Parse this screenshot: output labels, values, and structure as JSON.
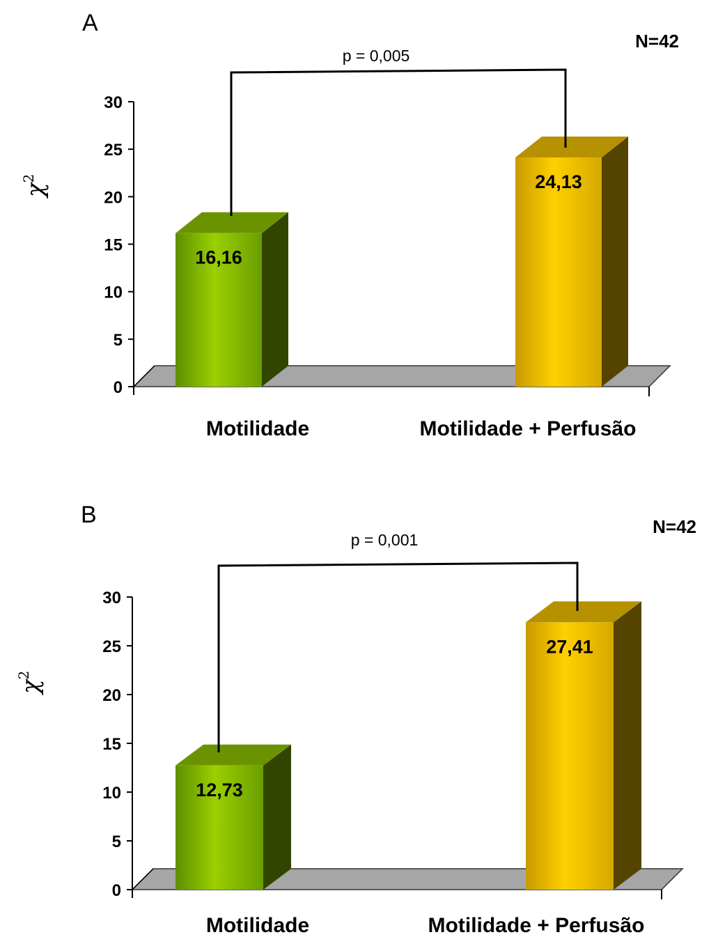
{
  "chart_data": [
    {
      "type": "bar",
      "panel": "A",
      "annotation_n": "N=42",
      "categories": [
        "Motilidade",
        "Motilidade + Perfusão"
      ],
      "values": [
        16.16,
        24.13
      ],
      "value_labels": [
        "16,16",
        "24,13"
      ],
      "colors": [
        "#8fc400",
        "#f2c200"
      ],
      "ylabel": "χ",
      "ylabel_sup": "2",
      "ylim": [
        0,
        30
      ],
      "yticks": [
        0,
        5,
        10,
        15,
        20,
        25,
        30
      ],
      "significance": {
        "label": "p = 0,005",
        "between": [
          0,
          1
        ]
      },
      "grid": false,
      "style": "3d-column"
    },
    {
      "type": "bar",
      "panel": "B",
      "annotation_n": "N=42",
      "categories": [
        "Motilidade",
        "Motilidade + Perfusão"
      ],
      "values": [
        12.73,
        27.41
      ],
      "value_labels": [
        "12,73",
        "27,41"
      ],
      "colors": [
        "#8fc400",
        "#f2c200"
      ],
      "ylabel": "χ",
      "ylabel_sup": "2",
      "ylim": [
        0,
        30
      ],
      "yticks": [
        0,
        5,
        10,
        15,
        20,
        25,
        30
      ],
      "significance": {
        "label": "p = 0,001",
        "between": [
          0,
          1
        ]
      },
      "grid": false,
      "style": "3d-column"
    }
  ]
}
